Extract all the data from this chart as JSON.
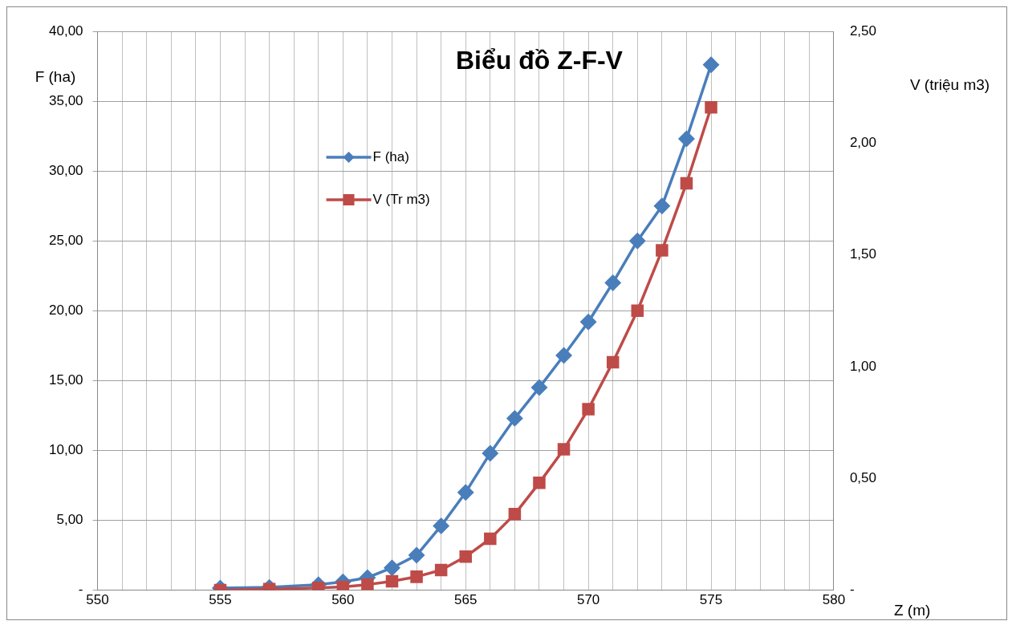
{
  "chart_data": {
    "type": "line",
    "title": "Biểu đồ Z-F-V",
    "xlabel": "Z (m)",
    "ylabel": "F (ha)",
    "y2label": "V (triệu m3)",
    "x": [
      555,
      557,
      559,
      560,
      561,
      562,
      563,
      564,
      565,
      566,
      567,
      568,
      569,
      570,
      571,
      572,
      573,
      574,
      575
    ],
    "series": [
      {
        "name": "F (ha)",
        "color": "#4a7ebb",
        "marker": "diamond",
        "values": [
          0.15,
          0.2,
          0.4,
          0.6,
          0.9,
          1.6,
          2.5,
          4.6,
          7.0,
          9.8,
          12.3,
          14.5,
          16.8,
          19.2,
          22.0,
          25.0,
          27.5,
          32.3,
          37.6
        ]
      },
      {
        "name": "V (Tr m3)",
        "color": "#be4b48",
        "marker": "square",
        "axis": "y2",
        "values": [
          0.0,
          0.005,
          0.01,
          0.015,
          0.025,
          0.04,
          0.06,
          0.09,
          0.15,
          0.23,
          0.34,
          0.48,
          0.63,
          0.81,
          1.02,
          1.25,
          1.52,
          1.82,
          2.16
        ]
      }
    ],
    "xlim": [
      550,
      580
    ],
    "xticks": [
      550,
      {
        "value": 551,
        "label": null
      },
      {
        "value": 552,
        "label": null
      },
      {
        "value": 553,
        "label": null
      },
      {
        "value": 554,
        "label": null
      },
      555,
      {
        "value": 556,
        "label": null
      },
      {
        "value": 557,
        "label": null
      },
      {
        "value": 558,
        "label": null
      },
      {
        "value": 559,
        "label": null
      },
      560,
      {
        "value": 561,
        "label": null
      },
      {
        "value": 562,
        "label": null
      },
      {
        "value": 563,
        "label": null
      },
      {
        "value": 564,
        "label": null
      },
      565,
      {
        "value": 566,
        "label": null
      },
      {
        "value": 567,
        "label": null
      },
      {
        "value": 568,
        "label": null
      },
      {
        "value": 569,
        "label": null
      },
      570,
      {
        "value": 571,
        "label": null
      },
      {
        "value": 572,
        "label": null
      },
      {
        "value": 573,
        "label": null
      },
      {
        "value": 574,
        "label": null
      },
      575,
      {
        "value": 576,
        "label": null
      },
      {
        "value": 577,
        "label": null
      },
      {
        "value": 578,
        "label": null
      },
      {
        "value": 579,
        "label": null
      },
      580
    ],
    "ylim": [
      0,
      40
    ],
    "yticks": [
      {
        "value": 0,
        "label": "-"
      },
      {
        "value": 5,
        "label": "5,00"
      },
      {
        "value": 10,
        "label": "10,00"
      },
      {
        "value": 15,
        "label": "15,00"
      },
      {
        "value": 20,
        "label": "20,00"
      },
      {
        "value": 25,
        "label": "25,00"
      },
      {
        "value": 30,
        "label": "30,00"
      },
      {
        "value": 35,
        "label": "35,00"
      },
      {
        "value": 40,
        "label": "40,00"
      }
    ],
    "y2lim": [
      0,
      2.5
    ],
    "y2ticks": [
      {
        "value": 0,
        "label": "-"
      },
      {
        "value": 0.5,
        "label": "0,50"
      },
      {
        "value": 1,
        "label": "1,00"
      },
      {
        "value": 1.5,
        "label": "1,50"
      },
      {
        "value": 2,
        "label": "2,00"
      },
      {
        "value": 2.5,
        "label": "2,50"
      }
    ],
    "grid": true,
    "legend": "top left",
    "line_style": "solid"
  }
}
